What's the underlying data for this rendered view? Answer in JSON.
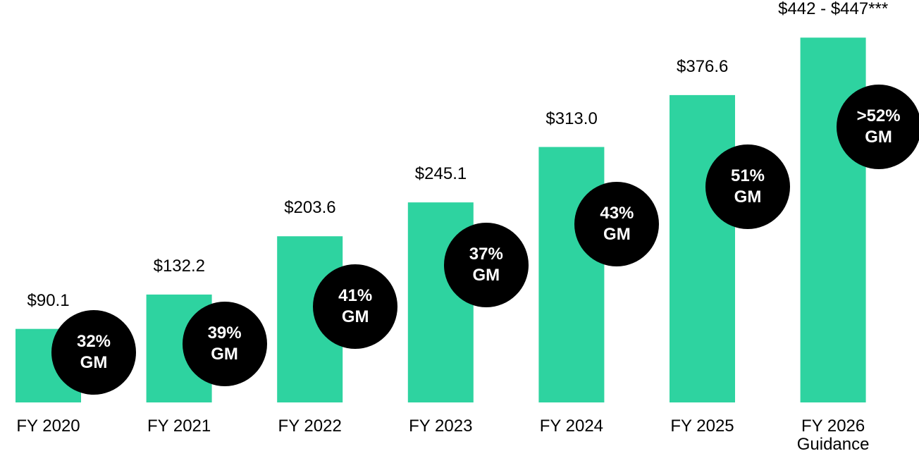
{
  "chart_data": {
    "type": "bar",
    "categories": [
      "FY 2020",
      "FY 2021",
      "FY 2022",
      "FY 2023",
      "FY 2024",
      "FY 2025",
      "FY 2026 Guidance"
    ],
    "values": [
      90.1,
      132.2,
      203.6,
      245.1,
      313.0,
      376.6,
      447
    ],
    "value_labels": [
      "$90.1",
      "$132.2",
      "$203.6",
      "$245.1",
      "$313.0",
      "$376.6",
      "$442 - $447***"
    ],
    "annotations": [
      "32% GM",
      "39% GM",
      "41% GM",
      "37% GM",
      "43% GM",
      "51% GM",
      ">52% GM"
    ],
    "color": "#2ed3a0"
  }
}
